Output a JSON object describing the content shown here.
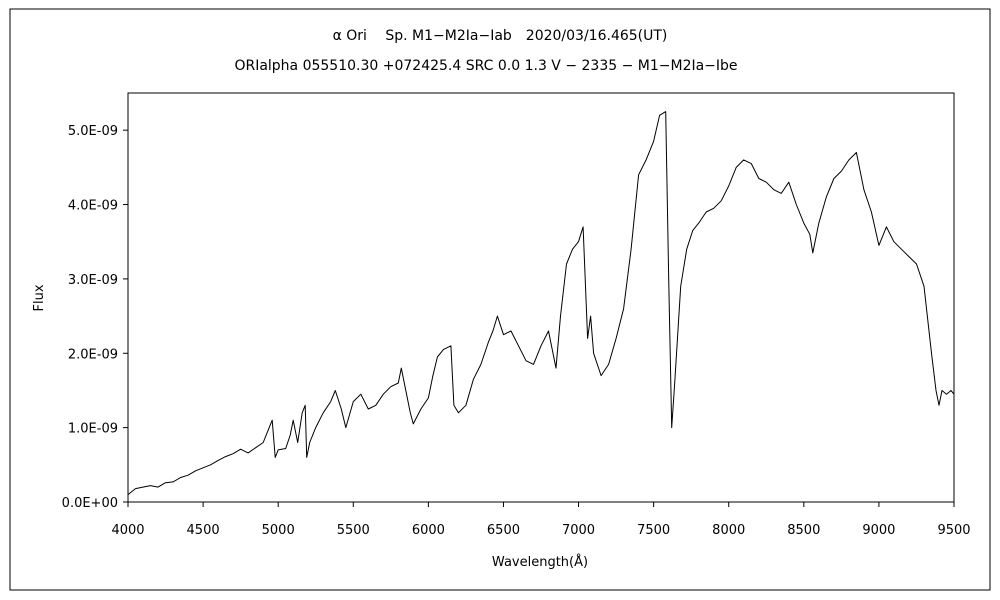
{
  "chart_data": {
    "type": "line",
    "title": "α Ori　 Sp. M1−M2Ia−Iab　2020/03/16.465(UT)",
    "subtitle": "ORIalpha 055510.30 +072425.4 SRC 0.0 1.3 V − 2335 − M1−M2Ia−Ibe",
    "xlabel": "Wavelength(Å)",
    "ylabel": "Flux",
    "xlim": [
      4000,
      9500
    ],
    "ylim": [
      0,
      5.5e-09
    ],
    "x_ticks": [
      4000,
      4500,
      5000,
      5500,
      6000,
      6500,
      7000,
      7500,
      8000,
      8500,
      9000,
      9500
    ],
    "x_tick_labels": [
      "4000",
      "4500",
      "5000",
      "5500",
      "6000",
      "6500",
      "7000",
      "7500",
      "8000",
      "8500",
      "9000",
      "9500"
    ],
    "y_ticks": [
      0,
      1e-09,
      2e-09,
      3e-09,
      4e-09,
      5e-09
    ],
    "y_tick_labels": [
      "0.0E+00",
      "1.0E-09",
      "2.0E-09",
      "3.0E-09",
      "4.0E-09",
      "5.0E-09"
    ],
    "grid": false,
    "series": [
      {
        "points": [
          [
            4000,
            1e-10
          ],
          [
            4050,
            1.8e-10
          ],
          [
            4100,
            2e-10
          ],
          [
            4150,
            2.2e-10
          ],
          [
            4200,
            2e-10
          ],
          [
            4250,
            2.6e-10
          ],
          [
            4300,
            2.7e-10
          ],
          [
            4350,
            3.3e-10
          ],
          [
            4400,
            3.6e-10
          ],
          [
            4450,
            4.2e-10
          ],
          [
            4500,
            4.6e-10
          ],
          [
            4550,
            5e-10
          ],
          [
            4600,
            5.6e-10
          ],
          [
            4650,
            6.1e-10
          ],
          [
            4700,
            6.5e-10
          ],
          [
            4750,
            7.1e-10
          ],
          [
            4800,
            6.6e-10
          ],
          [
            4850,
            7.3e-10
          ],
          [
            4900,
            8e-10
          ],
          [
            4940,
            1e-09
          ],
          [
            4960,
            1.1e-09
          ],
          [
            4980,
            6e-10
          ],
          [
            5000,
            7e-10
          ],
          [
            5050,
            7.2e-10
          ],
          [
            5080,
            9e-10
          ],
          [
            5100,
            1.1e-09
          ],
          [
            5130,
            8e-10
          ],
          [
            5160,
            1.2e-09
          ],
          [
            5180,
            1.3e-09
          ],
          [
            5190,
            6e-10
          ],
          [
            5210,
            8e-10
          ],
          [
            5250,
            1e-09
          ],
          [
            5300,
            1.2e-09
          ],
          [
            5350,
            1.35e-09
          ],
          [
            5380,
            1.5e-09
          ],
          [
            5420,
            1.25e-09
          ],
          [
            5450,
            1e-09
          ],
          [
            5500,
            1.35e-09
          ],
          [
            5550,
            1.45e-09
          ],
          [
            5600,
            1.25e-09
          ],
          [
            5650,
            1.3e-09
          ],
          [
            5700,
            1.45e-09
          ],
          [
            5750,
            1.55e-09
          ],
          [
            5800,
            1.6e-09
          ],
          [
            5820,
            1.8e-09
          ],
          [
            5850,
            1.5e-09
          ],
          [
            5880,
            1.2e-09
          ],
          [
            5900,
            1.05e-09
          ],
          [
            5950,
            1.25e-09
          ],
          [
            6000,
            1.4e-09
          ],
          [
            6030,
            1.7e-09
          ],
          [
            6060,
            1.95e-09
          ],
          [
            6100,
            2.05e-09
          ],
          [
            6150,
            2.1e-09
          ],
          [
            6170,
            1.3e-09
          ],
          [
            6200,
            1.2e-09
          ],
          [
            6250,
            1.3e-09
          ],
          [
            6300,
            1.65e-09
          ],
          [
            6350,
            1.85e-09
          ],
          [
            6400,
            2.15e-09
          ],
          [
            6430,
            2.3e-09
          ],
          [
            6460,
            2.5e-09
          ],
          [
            6500,
            2.25e-09
          ],
          [
            6550,
            2.3e-09
          ],
          [
            6600,
            2.1e-09
          ],
          [
            6650,
            1.9e-09
          ],
          [
            6700,
            1.85e-09
          ],
          [
            6750,
            2.1e-09
          ],
          [
            6800,
            2.3e-09
          ],
          [
            6850,
            1.8e-09
          ],
          [
            6880,
            2.5e-09
          ],
          [
            6920,
            3.2e-09
          ],
          [
            6960,
            3.4e-09
          ],
          [
            7000,
            3.5e-09
          ],
          [
            7030,
            3.7e-09
          ],
          [
            7060,
            2.2e-09
          ],
          [
            7080,
            2.5e-09
          ],
          [
            7100,
            2e-09
          ],
          [
            7150,
            1.7e-09
          ],
          [
            7200,
            1.85e-09
          ],
          [
            7250,
            2.2e-09
          ],
          [
            7300,
            2.6e-09
          ],
          [
            7350,
            3.4e-09
          ],
          [
            7400,
            4.4e-09
          ],
          [
            7450,
            4.6e-09
          ],
          [
            7500,
            4.85e-09
          ],
          [
            7540,
            5.2e-09
          ],
          [
            7580,
            5.25e-09
          ],
          [
            7600,
            3e-09
          ],
          [
            7620,
            1e-09
          ],
          [
            7640,
            1.6e-09
          ],
          [
            7680,
            2.9e-09
          ],
          [
            7720,
            3.4e-09
          ],
          [
            7760,
            3.65e-09
          ],
          [
            7800,
            3.75e-09
          ],
          [
            7850,
            3.9e-09
          ],
          [
            7900,
            3.95e-09
          ],
          [
            7950,
            4.05e-09
          ],
          [
            8000,
            4.25e-09
          ],
          [
            8050,
            4.5e-09
          ],
          [
            8100,
            4.6e-09
          ],
          [
            8150,
            4.55e-09
          ],
          [
            8200,
            4.35e-09
          ],
          [
            8250,
            4.3e-09
          ],
          [
            8300,
            4.2e-09
          ],
          [
            8350,
            4.15e-09
          ],
          [
            8400,
            4.3e-09
          ],
          [
            8450,
            4e-09
          ],
          [
            8500,
            3.75e-09
          ],
          [
            8540,
            3.6e-09
          ],
          [
            8560,
            3.35e-09
          ],
          [
            8600,
            3.75e-09
          ],
          [
            8650,
            4.1e-09
          ],
          [
            8700,
            4.35e-09
          ],
          [
            8750,
            4.45e-09
          ],
          [
            8800,
            4.6e-09
          ],
          [
            8850,
            4.7e-09
          ],
          [
            8900,
            4.2e-09
          ],
          [
            8950,
            3.9e-09
          ],
          [
            9000,
            3.45e-09
          ],
          [
            9050,
            3.7e-09
          ],
          [
            9100,
            3.5e-09
          ],
          [
            9150,
            3.4e-09
          ],
          [
            9200,
            3.3e-09
          ],
          [
            9250,
            3.2e-09
          ],
          [
            9300,
            2.9e-09
          ],
          [
            9350,
            2e-09
          ],
          [
            9380,
            1.5e-09
          ],
          [
            9400,
            1.3e-09
          ],
          [
            9420,
            1.5e-09
          ],
          [
            9450,
            1.45e-09
          ],
          [
            9480,
            1.5e-09
          ],
          [
            9500,
            1.45e-09
          ]
        ]
      }
    ]
  }
}
